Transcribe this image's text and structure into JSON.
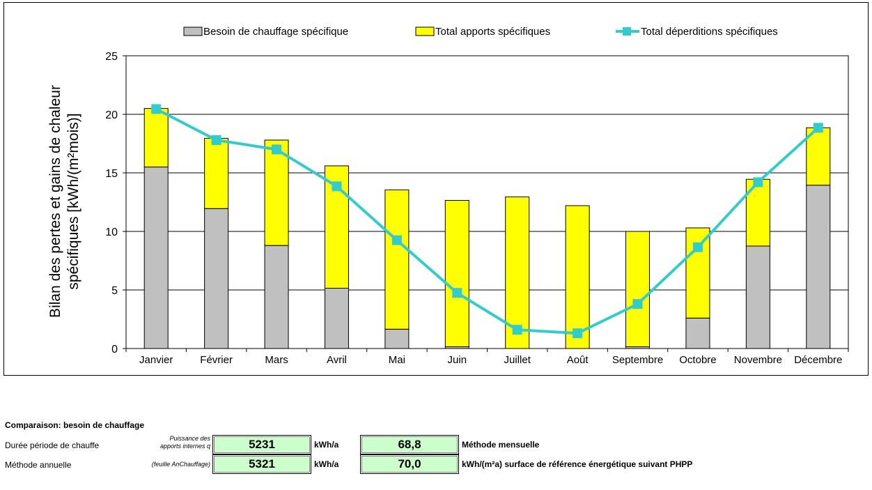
{
  "chart_data": {
    "type": "bar",
    "stacked": true,
    "categories": [
      "Janvier",
      "Février",
      "Mars",
      "Avril",
      "Mai",
      "Juin",
      "Juillet",
      "Août",
      "Septembre",
      "Octobre",
      "Novembre",
      "Décembre"
    ],
    "series": [
      {
        "name": "Besoin de chauffage spécifique",
        "kind": "bar",
        "color": "#c0c0c0",
        "values": [
          15.5,
          11.95,
          8.8,
          5.15,
          1.65,
          0.15,
          0,
          0,
          0.15,
          2.6,
          8.75,
          13.95
        ]
      },
      {
        "name": "Total apports spécifiques",
        "kind": "bar",
        "color": "#ffff00",
        "values": [
          5.0,
          6.0,
          9.0,
          10.45,
          11.9,
          12.5,
          12.95,
          12.2,
          9.85,
          7.7,
          5.7,
          4.9
        ]
      },
      {
        "name": "Total déperditions spécifiques",
        "kind": "line",
        "color": "#33cccc",
        "values": [
          20.45,
          17.8,
          17.0,
          13.85,
          9.25,
          4.75,
          1.6,
          1.3,
          3.8,
          8.65,
          14.2,
          18.85
        ]
      }
    ],
    "ylabel": "Bilan des pertes et gains de chaleur spécifiques [kWh/(m²mois)]",
    "xlabel": "",
    "ylim": [
      0,
      25
    ],
    "yticks": [
      "0",
      "5",
      "10",
      "15",
      "20",
      "25"
    ],
    "grid": true,
    "legend": "top"
  },
  "comparison": {
    "title": "Comparaison: besoin de chauffage",
    "rows": [
      {
        "label": "Durée période de chauffe",
        "note_line1": "Puissance des",
        "note_line2": "apports internes q",
        "value1": "5231",
        "unit1": "kWh/a",
        "value2": "68,8",
        "unit2": "Méthode mensuelle"
      },
      {
        "label": "Méthode annuelle",
        "note_line1": "(feuille AnChauffage)",
        "note_line2": "",
        "value1": "5321",
        "unit1": "kWh/a",
        "value2": "70,0",
        "unit2": "kWh/(m²a) surface de référence énergétique suivant PHPP"
      }
    ]
  }
}
